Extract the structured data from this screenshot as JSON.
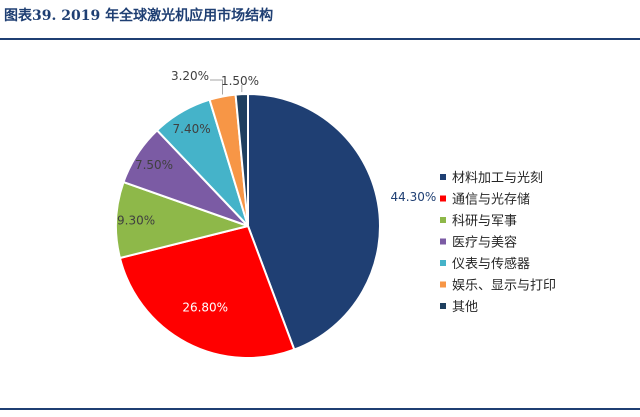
{
  "figure": {
    "title": "图表39.  2019 年全球激光机应用市场结构"
  },
  "colors": {
    "rule": "#1f3f73"
  },
  "chart_data": {
    "type": "pie",
    "legend_position": "right",
    "slices": [
      {
        "label": "材料加工与光刻",
        "value": 44.3,
        "value_label": "44.30%",
        "color": "#1f3f73",
        "label_color": "#1f3f73"
      },
      {
        "label": "通信与光存储",
        "value": 26.8,
        "value_label": "26.80%",
        "color": "#ff0000",
        "label_color": "#ffffff"
      },
      {
        "label": "科研与军事",
        "value": 9.3,
        "value_label": "9.30%",
        "color": "#8eb849",
        "label_color": "#404040"
      },
      {
        "label": "医疗与美容",
        "value": 7.5,
        "value_label": "7.50%",
        "color": "#7b5ba4",
        "label_color": "#404040"
      },
      {
        "label": "仪表与传感器",
        "value": 7.4,
        "value_label": "7.40%",
        "color": "#45b3c9",
        "label_color": "#404040"
      },
      {
        "label": "娱乐、显示与打印",
        "value": 3.2,
        "value_label": "3.20%",
        "color": "#f79646",
        "label_color": "#404040"
      },
      {
        "label": "其他",
        "value": 1.5,
        "value_label": "1.50%",
        "color": "#1f3f5f",
        "label_color": "#404040"
      }
    ]
  }
}
